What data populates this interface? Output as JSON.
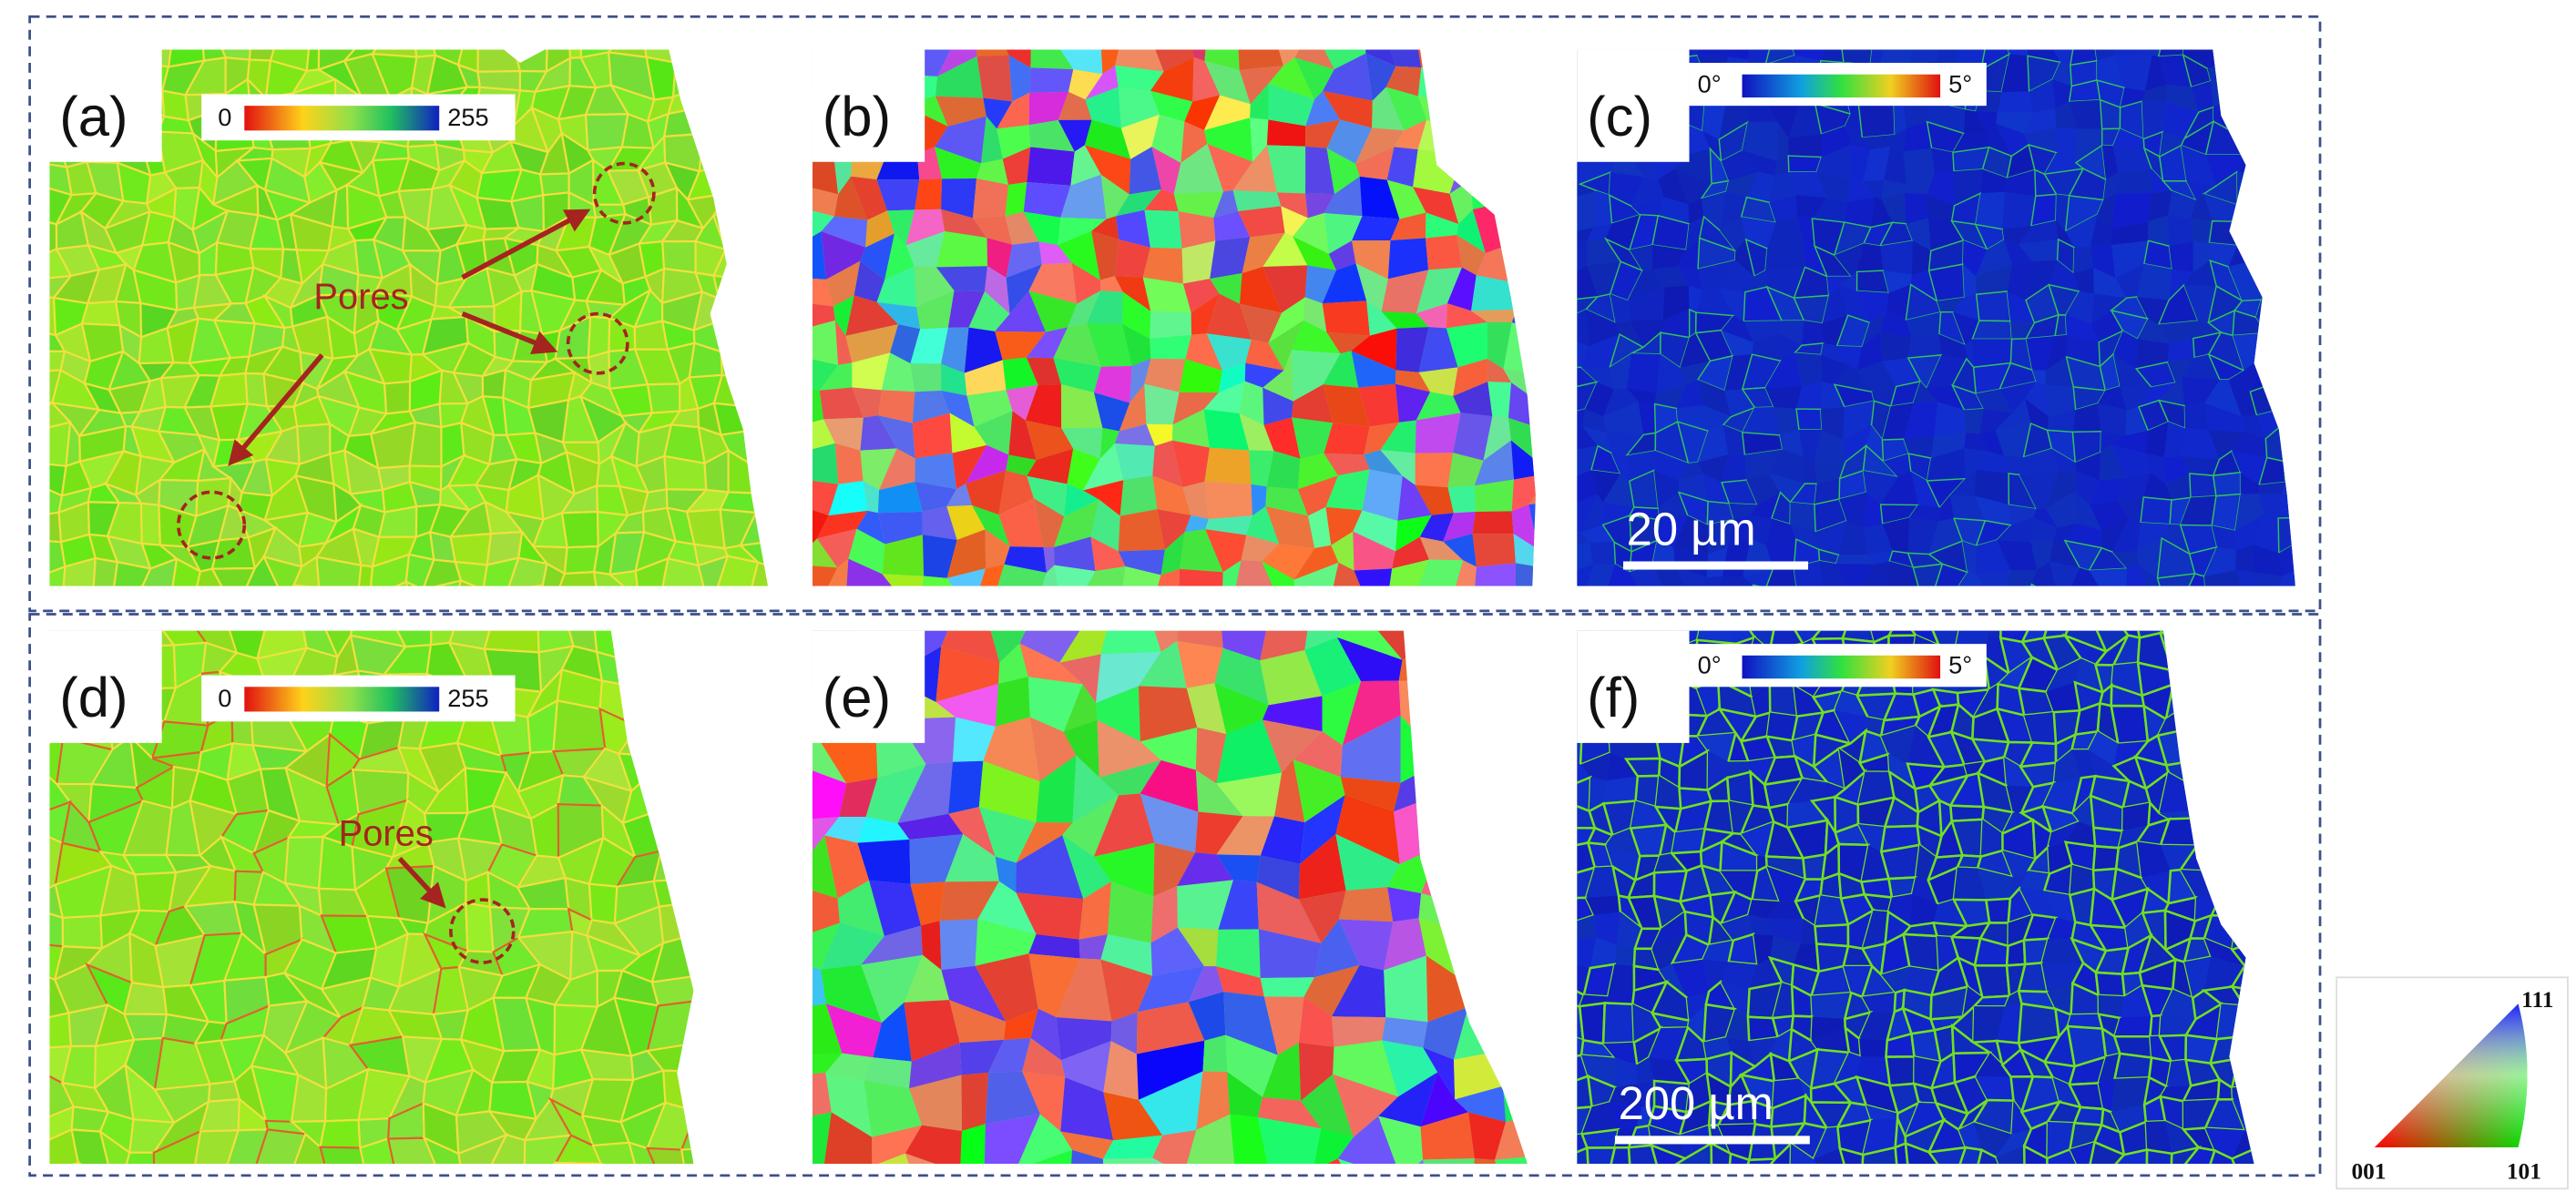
{
  "panels": [
    {
      "label": "(a)",
      "colorbar": {
        "min": "0",
        "max": "255"
      },
      "annotation": "Pores"
    },
    {
      "label": "(b)"
    },
    {
      "label": "(c)",
      "colorbar": {
        "min": "0°",
        "max": "5°"
      },
      "scale_bar": "20 µm"
    },
    {
      "label": "(d)",
      "colorbar": {
        "min": "0",
        "max": "255"
      },
      "annotation": "Pores"
    },
    {
      "label": "(e)"
    },
    {
      "label": "(f)",
      "colorbar": {
        "min": "0°",
        "max": "5°"
      },
      "scale_bar": "200 µm"
    }
  ],
  "ipf_key": {
    "top": "111",
    "left": "001",
    "right": "101"
  }
}
